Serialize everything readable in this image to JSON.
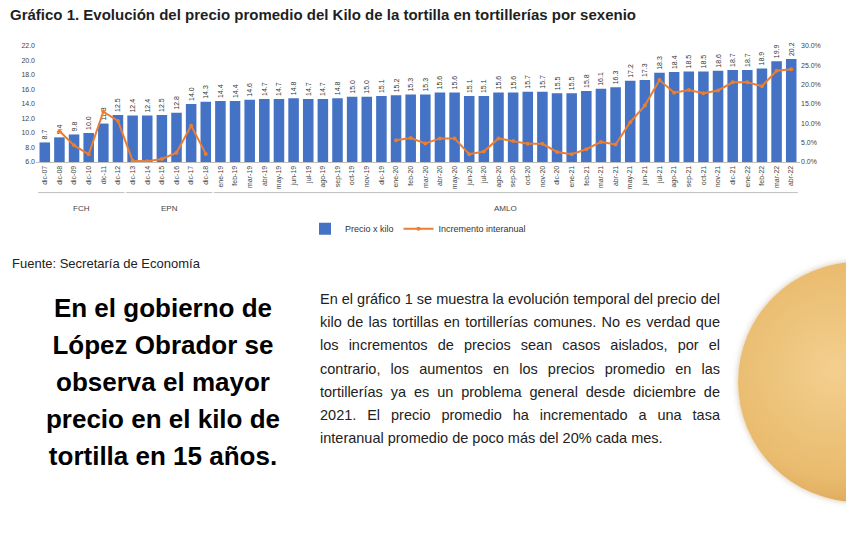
{
  "chart_data": {
    "type": "bar",
    "title": "Gráfico 1. Evolución del precio promedio del Kilo de la tortilla en tortillerías por sexenio",
    "categories": [
      "dic-07",
      "dic-08",
      "dic-09",
      "dic-10",
      "dic-11",
      "dic-12",
      "dic-13",
      "dic-14",
      "dic-15",
      "dic-16",
      "dic-17",
      "dic-18",
      "ene-19",
      "feb-19",
      "mar-19",
      "abr-19",
      "may-19",
      "jun-19",
      "jul-19",
      "ago-19",
      "sep-19",
      "oct-19",
      "nov-19",
      "dic-19",
      "ene-20",
      "feb-20",
      "mar-20",
      "abr-20",
      "may-20",
      "jun-20",
      "jul-20",
      "ago-20",
      "sep-20",
      "oct-20",
      "nov-20",
      "dic-20",
      "ene-21",
      "feb-21",
      "mar-21",
      "abr-21",
      "may-21",
      "jun-21",
      "jul-21",
      "ago-21",
      "sep-21",
      "oct-21",
      "nov-21",
      "dic-21",
      "ene-22",
      "feb-22",
      "mar-22",
      "abr-22"
    ],
    "series": [
      {
        "name": "Precio x kilo",
        "type": "bar",
        "color": "#4472c4",
        "data_labels": true,
        "values": [
          8.7,
          9.4,
          9.8,
          10.0,
          11.3,
          12.5,
          12.4,
          12.4,
          12.5,
          12.8,
          14.0,
          14.3,
          14.4,
          14.4,
          14.6,
          14.7,
          14.7,
          14.8,
          14.7,
          14.7,
          14.8,
          15.0,
          15.0,
          15.1,
          15.2,
          15.3,
          15.3,
          15.6,
          15.6,
          15.1,
          15.1,
          15.6,
          15.6,
          15.7,
          15.7,
          15.5,
          15.5,
          15.8,
          16.1,
          16.3,
          17.2,
          17.3,
          18.3,
          18.4,
          18.5,
          18.5,
          18.6,
          18.7,
          18.7,
          18.9,
          19.9,
          20.2
        ],
        "value_labels": [
          "8.7",
          "9.4",
          "9.8",
          "10.0",
          "11.3",
          "12.5",
          "12.4",
          "12.4",
          "12.5",
          "12.8",
          "14.0",
          "14.3",
          "14.4",
          "14.4",
          "14.6",
          "14.7",
          "14.7",
          "14.8",
          "14.7",
          "14.7",
          "14.8",
          "15.0",
          "15.0",
          "15.1",
          "15.2",
          "15.3",
          "15.3",
          "15.6",
          "15.6",
          "15.1",
          "15.1",
          "15.6",
          "15.6",
          "15.7",
          "15.7",
          "15.5",
          "15.5",
          "15.8",
          "16.1",
          "16.3",
          "17.2",
          "17.3",
          "18.3",
          "18.4",
          "18.5",
          "18.5",
          "18.6",
          "18.7",
          "18.7",
          "18.9",
          "19.9",
          "20.2"
        ]
      },
      {
        "name": "Incremento interanual",
        "type": "line",
        "color": "#ed7d31",
        "marker": "circle",
        "axis": "y2",
        "values": [
          null,
          8.0,
          4.3,
          2.0,
          13.0,
          10.6,
          0.3,
          0.2,
          0.8,
          2.4,
          9.4,
          2.1,
          null,
          null,
          null,
          null,
          null,
          null,
          null,
          null,
          null,
          null,
          null,
          null,
          5.6,
          6.2,
          4.8,
          6.1,
          6.1,
          2.0,
          2.7,
          6.1,
          5.4,
          4.7,
          4.7,
          2.6,
          2.0,
          3.3,
          5.2,
          4.5,
          10.3,
          14.6,
          21.2,
          17.9,
          18.6,
          17.8,
          18.5,
          20.6,
          20.6,
          19.6,
          23.6,
          24.0
        ]
      }
    ],
    "ylim": [
      6,
      22
    ],
    "yticks": [
      {
        "value": 6,
        "label": "6.0"
      },
      {
        "value": 8,
        "label": "8.0"
      },
      {
        "value": 10,
        "label": "10.0"
      },
      {
        "value": 12,
        "label": "12.0"
      },
      {
        "value": 14,
        "label": "14.0"
      },
      {
        "value": 16,
        "label": "16.0"
      },
      {
        "value": 18,
        "label": "18.0"
      },
      {
        "value": 20,
        "label": "20.0"
      },
      {
        "value": 22,
        "label": "22.0"
      }
    ],
    "y2lim": [
      0,
      30
    ],
    "y2ticks": [
      {
        "value": 0,
        "label": "0.0%"
      },
      {
        "value": 5,
        "label": "5.0%"
      },
      {
        "value": 10,
        "label": "10.0%"
      },
      {
        "value": 15,
        "label": "15.0%"
      },
      {
        "value": 20,
        "label": "20.0%"
      },
      {
        "value": 25,
        "label": "25.0%"
      },
      {
        "value": 30,
        "label": "30.0%"
      }
    ],
    "groups": [
      {
        "label": "FCH",
        "categories": [
          "dic-07",
          "dic-12"
        ]
      },
      {
        "label": "EPN",
        "categories": [
          "dic-13",
          "dic-18"
        ]
      },
      {
        "label": "AMLO",
        "categories": [
          "ene-19",
          "abr-22"
        ]
      }
    ],
    "legend": "bottom",
    "grid": false
  },
  "page": {
    "source": "Fuente: Secretaría de Economía",
    "headline": "En el gobierno de López Obrador se observa el mayor precio en el kilo de tortilla en 15 años.",
    "paragraph": "En el gráfico 1 se muestra la evolución temporal del precio del kilo de las tortillas en tortillerías comunes. No es verdad que los incrementos de precios sean casos aislados, por el contrario, los aumentos en los precios promedio en las tortillerías ya es un problema general desde diciembre de 2021.  El precio promedio ha incrementado a una tasa interanual promedio de poco más del 20% cada mes."
  }
}
